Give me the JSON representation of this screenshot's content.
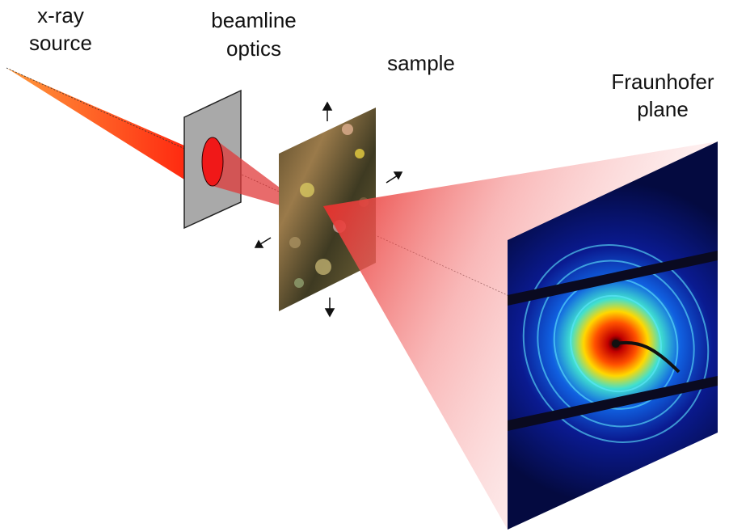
{
  "labels": [
    {
      "lines": [
        "x-ray",
        "source"
      ]
    },
    {
      "lines": [
        "beamline",
        "optics"
      ]
    },
    {
      "lines": [
        "sample"
      ]
    },
    {
      "lines": [
        "Fraunhofer",
        "plane"
      ]
    }
  ]
}
